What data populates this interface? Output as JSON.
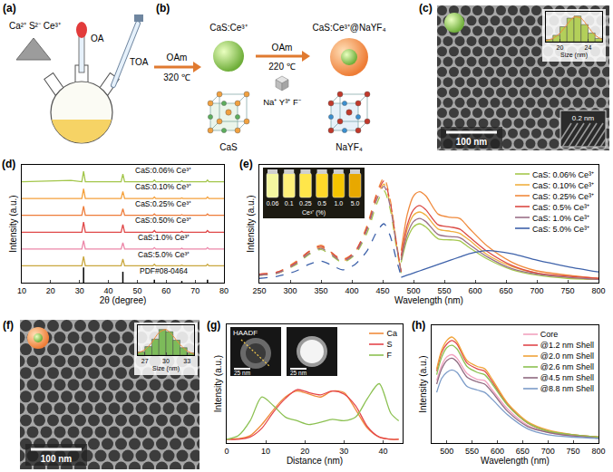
{
  "panels": {
    "a": {
      "letter": "(a)",
      "reagents": "Ca²⁺ S²⁻ Ce³⁺",
      "dropper": "OA",
      "pipette": "TOA"
    },
    "b": {
      "letter": "(b)",
      "core": "CaS:Ce³⁺",
      "core_shell": "CaS:Ce³⁺@NaYF₄",
      "step1": {
        "above": "OAm",
        "below": "320 ℃"
      },
      "step2": {
        "above": "OAm",
        "below": "220 ℃",
        "precursors": "Na⁺ Y³⁺ F⁻"
      },
      "core_lattice": "CaS",
      "shell_lattice": "NaYF₄"
    },
    "c": {
      "letter": "(c)",
      "scale_bar": "100 nm",
      "lattice_spacing": "0.2 nm"
    },
    "d": {
      "letter": "(d)"
    },
    "e": {
      "letter": "(e)",
      "inset": {
        "labels": [
          "0.06",
          "0.1",
          "0.25",
          "0.5",
          "1.0",
          "5.0"
        ],
        "caption": "Ce³⁺ (%)"
      }
    },
    "f": {
      "letter": "(f)",
      "scale_bar": "100 nm"
    },
    "g": {
      "letter": "(g)",
      "image_label": "HAADF",
      "scale_bars": [
        "25 nm",
        "25 nm"
      ]
    },
    "h": {
      "letter": "(h)"
    }
  },
  "chart_data": [
    {
      "type": "line",
      "x_label": "2θ (degree)",
      "y_label": "Intensity (a.u.)",
      "x": [
        10,
        27,
        30.8,
        31.4,
        32.0,
        44.4,
        45.0,
        45.6,
        55.4,
        55.9,
        56.4,
        65.0,
        65.4,
        65.8,
        73.8,
        74.3,
        74.8,
        80
      ],
      "xlim": [
        10,
        80
      ],
      "xticks": [
        10,
        20,
        30,
        40,
        50,
        60,
        70,
        80
      ],
      "ylim": [
        0,
        7
      ],
      "tick_labels": "x",
      "series": [
        {
          "name": "CaS:0.06% Ce³⁺",
          "color": "#a3c64a",
          "values": [
            6.0,
            6.08,
            6.0,
            6.62,
            6.0,
            6.0,
            6.45,
            6.0,
            6.0,
            6.1,
            6.0,
            6.0,
            6.05,
            6.0,
            6.0,
            6.1,
            6.0,
            6.0
          ]
        },
        {
          "name": "CaS:0.10% Ce³⁺",
          "color": "#f5a03a",
          "values": [
            5.0,
            5.02,
            5.0,
            5.58,
            5.0,
            5.0,
            5.42,
            5.0,
            5.0,
            5.09,
            5.0,
            5.0,
            5.04,
            5.0,
            5.0,
            5.09,
            5.0,
            5.0
          ]
        },
        {
          "name": "CaS:0.25% Ce³⁺",
          "color": "#ee7b38",
          "values": [
            4.0,
            4.02,
            4.0,
            4.55,
            4.0,
            4.0,
            4.4,
            4.0,
            4.0,
            4.08,
            4.0,
            4.0,
            4.04,
            4.0,
            4.0,
            4.08,
            4.0,
            4.0
          ]
        },
        {
          "name": "CaS:0.50% Ce³⁺",
          "color": "#e04848",
          "values": [
            3.0,
            3.02,
            3.0,
            3.6,
            3.0,
            3.0,
            3.45,
            3.0,
            3.0,
            3.1,
            3.0,
            3.0,
            3.05,
            3.0,
            3.0,
            3.1,
            3.0,
            3.0
          ]
        },
        {
          "name": "CaS:1.0% Ce³⁺",
          "color": "#ec86a8",
          "values": [
            2.0,
            2.02,
            2.0,
            2.5,
            2.0,
            2.0,
            2.38,
            2.0,
            2.0,
            2.08,
            2.0,
            2.0,
            2.04,
            2.0,
            2.0,
            2.08,
            2.0,
            2.0
          ]
        },
        {
          "name": "CaS:5.0% Ce³⁺",
          "color": "#c9a73d",
          "values": [
            1.0,
            1.02,
            1.0,
            1.55,
            1.0,
            1.0,
            1.4,
            1.0,
            1.0,
            1.09,
            1.0,
            1.0,
            1.04,
            1.0,
            1.0,
            1.09,
            1.0,
            1.0
          ]
        },
        {
          "name": "PDF#08-0464",
          "type": "stem",
          "color": "#000000",
          "x": [
            31.4,
            45.0,
            55.9,
            65.4,
            74.3
          ],
          "values": [
            0.9,
            0.65,
            0.18,
            0.1,
            0.18
          ]
        }
      ]
    },
    {
      "type": "line",
      "x_label": "Wavelength (nm)",
      "y_label": "Intensity (a.u.)",
      "xlim": [
        250,
        800
      ],
      "xticks": [
        250,
        300,
        350,
        400,
        450,
        500,
        550,
        600,
        650,
        700,
        750,
        800
      ],
      "ylim": [
        0,
        1.1
      ],
      "tick_labels": "x",
      "legend": "upper right",
      "series": [
        {
          "color": "#a5c84e",
          "line_style": "dash",
          "x": [
            250,
            280,
            310,
            330,
            350,
            365,
            385,
            405,
            425,
            440,
            452,
            462,
            472,
            480
          ],
          "values": [
            0.07,
            0.09,
            0.17,
            0.26,
            0.31,
            0.26,
            0.19,
            0.26,
            0.47,
            0.73,
            0.86,
            0.69,
            0.34,
            0.09
          ]
        },
        {
          "color": "#f0b040",
          "line_style": "dash",
          "x": [
            250,
            280,
            310,
            330,
            350,
            365,
            385,
            405,
            425,
            440,
            452,
            462,
            472,
            480
          ],
          "values": [
            0.07,
            0.09,
            0.18,
            0.28,
            0.33,
            0.28,
            0.2,
            0.28,
            0.51,
            0.78,
            0.92,
            0.74,
            0.37,
            0.09
          ]
        },
        {
          "color": "#f08a3c",
          "line_style": "dash",
          "x": [
            250,
            280,
            310,
            330,
            350,
            365,
            385,
            405,
            425,
            440,
            452,
            462,
            472,
            480
          ],
          "values": [
            0.08,
            0.1,
            0.2,
            0.29,
            0.35,
            0.29,
            0.22,
            0.29,
            0.54,
            0.83,
            0.98,
            0.78,
            0.39,
            0.1
          ]
        },
        {
          "color": "#db4a44",
          "line_style": "dash",
          "x": [
            250,
            280,
            310,
            330,
            350,
            365,
            385,
            405,
            425,
            440,
            452,
            462,
            472,
            480
          ],
          "values": [
            0.08,
            0.1,
            0.19,
            0.29,
            0.34,
            0.29,
            0.21,
            0.29,
            0.52,
            0.81,
            0.95,
            0.76,
            0.38,
            0.1
          ]
        },
        {
          "color": "#9a7088",
          "line_style": "dash",
          "x": [
            250,
            280,
            310,
            330,
            350,
            365,
            385,
            405,
            425,
            440,
            452,
            462,
            472,
            480
          ],
          "values": [
            0.07,
            0.09,
            0.18,
            0.27,
            0.32,
            0.27,
            0.2,
            0.27,
            0.5,
            0.77,
            0.9,
            0.72,
            0.36,
            0.09
          ]
        },
        {
          "color": "#3e62aa",
          "line_style": "dash",
          "x": [
            250,
            280,
            310,
            330,
            350,
            365,
            385,
            405,
            425,
            440,
            452,
            462,
            472,
            480
          ],
          "values": [
            0.04,
            0.06,
            0.11,
            0.17,
            0.2,
            0.17,
            0.12,
            0.17,
            0.3,
            0.47,
            0.55,
            0.44,
            0.22,
            0.06
          ]
        },
        {
          "name": "CaS: 0.06% Ce³⁺",
          "color": "#a5c84e",
          "line_style": "solid",
          "x": [
            480,
            490,
            500,
            510,
            520,
            540,
            560,
            575,
            590,
            620,
            660,
            700,
            750,
            800
          ],
          "values": [
            0.19,
            0.41,
            0.52,
            0.55,
            0.52,
            0.41,
            0.4,
            0.39,
            0.33,
            0.22,
            0.12,
            0.07,
            0.04,
            0.03
          ]
        },
        {
          "name": "CaS: 0.10% Ce³⁺",
          "color": "#f0b040",
          "line_style": "solid",
          "x": [
            480,
            490,
            500,
            510,
            520,
            540,
            560,
            575,
            590,
            620,
            660,
            700,
            750,
            800
          ],
          "values": [
            0.23,
            0.5,
            0.63,
            0.66,
            0.63,
            0.5,
            0.48,
            0.46,
            0.4,
            0.26,
            0.15,
            0.09,
            0.05,
            0.03
          ]
        },
        {
          "name": "CaS: 0.25% Ce³⁺",
          "color": "#f08a3c",
          "line_style": "solid",
          "x": [
            480,
            490,
            500,
            510,
            520,
            540,
            560,
            575,
            590,
            620,
            660,
            700,
            750,
            800
          ],
          "values": [
            0.3,
            0.64,
            0.81,
            0.85,
            0.81,
            0.64,
            0.61,
            0.6,
            0.51,
            0.34,
            0.19,
            0.11,
            0.07,
            0.04
          ]
        },
        {
          "name": "CaS: 0.5% Ce³⁺",
          "color": "#db4a44",
          "line_style": "solid",
          "x": [
            480,
            490,
            500,
            510,
            520,
            540,
            560,
            575,
            590,
            620,
            660,
            700,
            750,
            800
          ],
          "values": [
            0.25,
            0.54,
            0.68,
            0.72,
            0.68,
            0.54,
            0.52,
            0.5,
            0.43,
            0.29,
            0.16,
            0.09,
            0.06,
            0.04
          ]
        },
        {
          "name": "CaS: 1.0% Ce³⁺",
          "color": "#9a7088",
          "line_style": "solid",
          "x": [
            480,
            490,
            500,
            510,
            520,
            540,
            560,
            575,
            590,
            620,
            660,
            700,
            750,
            800
          ],
          "values": [
            0.21,
            0.45,
            0.57,
            0.6,
            0.57,
            0.45,
            0.43,
            0.42,
            0.36,
            0.24,
            0.13,
            0.08,
            0.05,
            0.03
          ]
        },
        {
          "name": "CaS: 5.0% Ce³⁺",
          "color": "#3e62aa",
          "line_style": "solid",
          "x": [
            480,
            490,
            500,
            510,
            520,
            540,
            560,
            575,
            590,
            620,
            660,
            700,
            750,
            800
          ],
          "values": [
            0.05,
            0.07,
            0.09,
            0.11,
            0.13,
            0.17,
            0.21,
            0.24,
            0.27,
            0.3,
            0.27,
            0.21,
            0.15,
            0.1
          ]
        }
      ]
    },
    {
      "type": "line",
      "x_label": "Distance (nm)",
      "y_label": "Intensity (a.u.)",
      "x": [
        0,
        3,
        6,
        9,
        12,
        15,
        18,
        21,
        24,
        27,
        30,
        33,
        36,
        39,
        42,
        44
      ],
      "xlim": [
        0,
        45
      ],
      "xticks": [
        0,
        10,
        20,
        30,
        40
      ],
      "ylim": [
        0,
        1.6
      ],
      "tick_labels": "x",
      "legend": "upper right",
      "series": [
        {
          "name": "Ca",
          "color": "#f08c3c",
          "values": [
            0.05,
            0.06,
            0.1,
            0.25,
            0.45,
            0.62,
            0.7,
            0.66,
            0.62,
            0.7,
            0.68,
            0.45,
            0.2,
            0.08,
            0.05,
            0.05
          ]
        },
        {
          "name": "S",
          "color": "#e5474b",
          "values": [
            0.05,
            0.05,
            0.08,
            0.2,
            0.42,
            0.6,
            0.72,
            0.68,
            0.65,
            0.7,
            0.66,
            0.5,
            0.22,
            0.08,
            0.05,
            0.05
          ]
        },
        {
          "name": "F",
          "color": "#8cc152",
          "values": [
            0.05,
            0.1,
            0.3,
            0.62,
            0.5,
            0.35,
            0.3,
            0.25,
            0.28,
            0.32,
            0.3,
            0.35,
            0.6,
            0.8,
            0.4,
            0.3
          ]
        }
      ]
    },
    {
      "type": "line",
      "x_label": "Wavelength (nm)",
      "y_label": "Intensity (a.u.)",
      "x": [
        480,
        490,
        500,
        510,
        520,
        540,
        560,
        575,
        590,
        620,
        660,
        700,
        750,
        800
      ],
      "xlim": [
        470,
        800
      ],
      "xticks": [
        500,
        550,
        600,
        650,
        700,
        750,
        800
      ],
      "ylim": [
        0,
        1.0
      ],
      "tick_labels": "x",
      "legend": "upper right",
      "series": [
        {
          "name": "Core",
          "color": "#f2a2bf",
          "values": [
            0.53,
            0.66,
            0.73,
            0.75,
            0.72,
            0.59,
            0.54,
            0.53,
            0.45,
            0.29,
            0.15,
            0.09,
            0.06,
            0.05
          ]
        },
        {
          "name": "@1.2 nm Shell",
          "color": "#e0474c",
          "values": [
            0.61,
            0.77,
            0.84,
            0.87,
            0.84,
            0.68,
            0.63,
            0.61,
            0.52,
            0.33,
            0.17,
            0.1,
            0.07,
            0.05
          ]
        },
        {
          "name": "@2.0 nm Shell",
          "color": "#f0a33a",
          "values": [
            0.63,
            0.79,
            0.87,
            0.9,
            0.86,
            0.7,
            0.65,
            0.63,
            0.54,
            0.34,
            0.18,
            0.11,
            0.07,
            0.05
          ]
        },
        {
          "name": "@2.6 nm Shell",
          "color": "#8dc152",
          "values": [
            0.58,
            0.73,
            0.81,
            0.83,
            0.8,
            0.65,
            0.6,
            0.58,
            0.5,
            0.32,
            0.17,
            0.1,
            0.07,
            0.05
          ]
        },
        {
          "name": "@4.5 nm Shell",
          "color": "#8f6a80",
          "values": [
            0.5,
            0.63,
            0.7,
            0.72,
            0.69,
            0.56,
            0.52,
            0.5,
            0.43,
            0.27,
            0.14,
            0.09,
            0.06,
            0.04
          ]
        },
        {
          "name": "@8.8 nm Shell",
          "color": "#7b9bc8",
          "values": [
            0.43,
            0.55,
            0.6,
            0.62,
            0.6,
            0.48,
            0.45,
            0.43,
            0.37,
            0.24,
            0.12,
            0.07,
            0.05,
            0.04
          ]
        }
      ]
    },
    {
      "type": "histogram",
      "x_label": "Size (nm)",
      "bins": [
        18,
        19,
        20,
        21,
        22,
        23,
        24,
        25,
        26
      ],
      "counts": [
        2,
        6,
        14,
        22,
        24,
        16,
        8,
        3
      ],
      "color": "#b3cf5a",
      "xlim": [
        18,
        26
      ],
      "xticks": [
        20,
        24
      ],
      "ylim": [
        0,
        28
      ],
      "tick_labels": "x",
      "series": [
        {
          "type": "line",
          "color": "#f08a3c",
          "x": [
            18,
            19,
            20,
            21,
            22,
            23,
            24,
            25,
            26
          ],
          "values": [
            1,
            3,
            8,
            16,
            23,
            22,
            14,
            6,
            2
          ]
        }
      ]
    },
    {
      "type": "histogram",
      "x_label": "Size (nm)",
      "bins": [
        26,
        27,
        28,
        29,
        30,
        31,
        32,
        33,
        34
      ],
      "counts": [
        3,
        8,
        15,
        24,
        22,
        14,
        7,
        2
      ],
      "color": "#7dbb5a",
      "xlim": [
        26,
        34
      ],
      "xticks": [
        27,
        30,
        33
      ],
      "ylim": [
        0,
        28
      ],
      "tick_labels": "x",
      "series": [
        {
          "type": "line",
          "color": "#f08a3c",
          "x": [
            26,
            27,
            28,
            29,
            30,
            31,
            32,
            33,
            34
          ],
          "values": [
            2,
            5,
            12,
            21,
            24,
            18,
            10,
            4,
            1
          ]
        }
      ]
    }
  ]
}
